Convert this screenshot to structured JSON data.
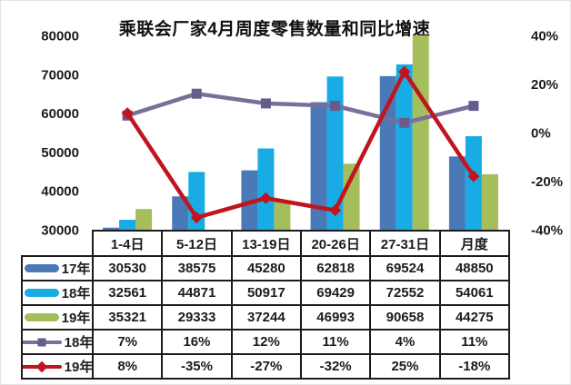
{
  "colors": {
    "bar_17": "#4A79B8",
    "bar_18": "#19ACE4",
    "bar_19": "#A3BE5A",
    "line_18": "#7A6E9B",
    "line_18_marker": "#675C8C",
    "line_19": "#C1141E",
    "line_19_marker": "#C1141E",
    "text": "#1b1b1b",
    "table_border": "#1c1c1c"
  },
  "chart_data": {
    "type": "bar+line",
    "title": "乘联会厂家4月周度零售数量和同比增速",
    "categories": [
      "1-4日",
      "5-12日",
      "13-19日",
      "20-26日",
      "27-31日",
      "月度"
    ],
    "bar_series": [
      {
        "name": "17年",
        "color_key": "bar_17",
        "values": [
          30530,
          38575,
          45280,
          62818,
          69524,
          48850
        ]
      },
      {
        "name": "18年",
        "color_key": "bar_18",
        "values": [
          32561,
          44871,
          50917,
          69429,
          72552,
          54061
        ]
      },
      {
        "name": "19年",
        "color_key": "bar_19",
        "values": [
          35321,
          29333,
          37244,
          46993,
          90658,
          44275
        ]
      }
    ],
    "line_series": [
      {
        "name": "18年",
        "color_key": "line_18",
        "marker": "square",
        "values_pct": [
          7,
          16,
          12,
          11,
          4,
          11
        ],
        "labels": [
          "7%",
          "16%",
          "12%",
          "11%",
          "4%",
          "11%"
        ]
      },
      {
        "name": "19年",
        "color_key": "line_19",
        "marker": "diamond",
        "values_pct": [
          8,
          -35,
          -27,
          -32,
          25,
          -18
        ],
        "labels": [
          "8%",
          "-35%",
          "-27%",
          "-32%",
          "25%",
          "-18%"
        ]
      }
    ],
    "left_axis": {
      "min": 30000,
      "max": 80000,
      "ticks": [
        "80000",
        "70000",
        "60000",
        "50000",
        "40000",
        "30000"
      ]
    },
    "right_axis": {
      "min": -40,
      "max": 40,
      "ticks": [
        "40%",
        "20%",
        "0%",
        "-20%",
        "-40%"
      ]
    },
    "grid": false,
    "legend_position": "table-left-column"
  }
}
